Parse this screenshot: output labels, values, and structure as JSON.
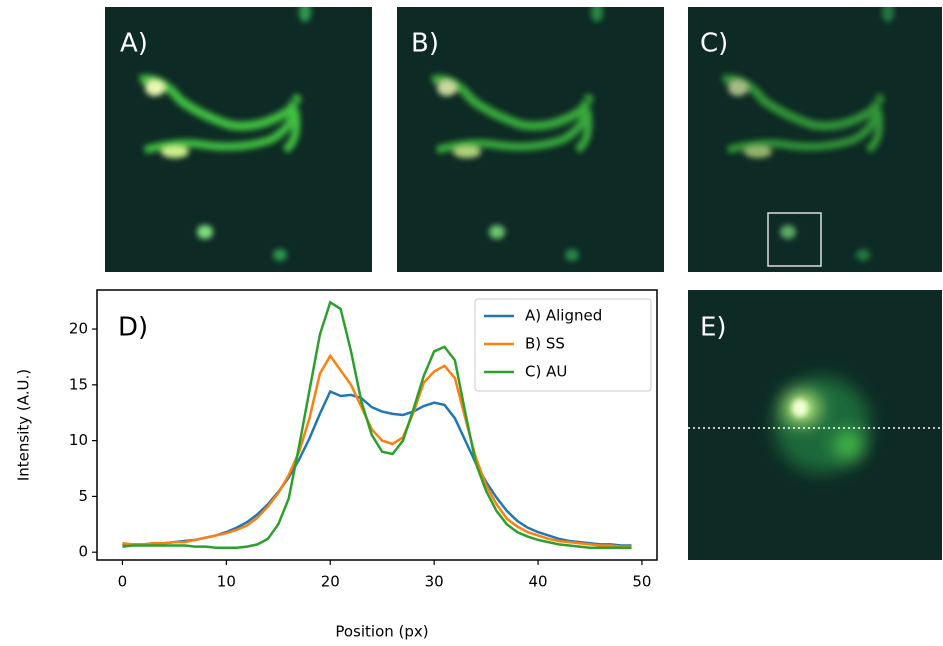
{
  "panels": [
    {
      "label": "A)"
    },
    {
      "label": "B)"
    },
    {
      "label": "C)"
    },
    {
      "label": "E)"
    }
  ],
  "chart_data": {
    "type": "line",
    "panel_label": "D)",
    "x_label": "Position (px)",
    "y_label": "Intensity (A.U.)",
    "x": [
      0,
      1,
      2,
      3,
      4,
      5,
      6,
      7,
      8,
      9,
      10,
      11,
      12,
      13,
      14,
      15,
      16,
      17,
      18,
      19,
      20,
      21,
      22,
      23,
      24,
      25,
      26,
      27,
      28,
      29,
      30,
      31,
      32,
      33,
      34,
      35,
      36,
      37,
      38,
      39,
      40,
      41,
      42,
      43,
      44,
      45,
      46,
      47,
      48,
      49
    ],
    "series": [
      {
        "name": "A) Aligned",
        "color": "#1f77b4",
        "values": [
          0.7,
          0.7,
          0.7,
          0.8,
          0.8,
          0.9,
          1.0,
          1.1,
          1.3,
          1.5,
          1.8,
          2.2,
          2.7,
          3.4,
          4.3,
          5.4,
          6.7,
          8.3,
          10.2,
          12.4,
          14.4,
          14.0,
          14.1,
          13.8,
          13.0,
          12.6,
          12.4,
          12.3,
          12.6,
          13.1,
          13.4,
          13.2,
          12.0,
          10.0,
          8.0,
          6.3,
          4.9,
          3.7,
          2.8,
          2.2,
          1.8,
          1.5,
          1.2,
          1.0,
          0.9,
          0.8,
          0.7,
          0.7,
          0.6,
          0.6
        ]
      },
      {
        "name": "B) SS",
        "color": "#ff7f0e",
        "values": [
          0.8,
          0.7,
          0.7,
          0.8,
          0.8,
          0.9,
          0.9,
          1.1,
          1.3,
          1.5,
          1.7,
          2.0,
          2.4,
          3.1,
          4.1,
          5.3,
          6.9,
          9.0,
          12.0,
          16.0,
          17.6,
          16.3,
          15.0,
          13.0,
          11.0,
          10.0,
          9.7,
          10.3,
          12.5,
          15.2,
          16.2,
          16.7,
          15.6,
          12.0,
          8.5,
          6.0,
          4.3,
          3.0,
          2.3,
          1.8,
          1.5,
          1.2,
          1.0,
          0.9,
          0.8,
          0.7,
          0.6,
          0.6,
          0.5,
          0.5
        ]
      },
      {
        "name": "C) AU",
        "color": "#2ca02c",
        "values": [
          0.5,
          0.6,
          0.6,
          0.6,
          0.6,
          0.6,
          0.6,
          0.5,
          0.5,
          0.4,
          0.4,
          0.4,
          0.5,
          0.7,
          1.2,
          2.5,
          4.8,
          9.5,
          14.5,
          19.5,
          22.4,
          21.8,
          18.0,
          13.5,
          10.5,
          9.0,
          8.8,
          10.0,
          12.8,
          15.8,
          18.0,
          18.4,
          17.2,
          12.5,
          8.0,
          5.5,
          3.7,
          2.5,
          1.8,
          1.4,
          1.1,
          0.9,
          0.7,
          0.6,
          0.5,
          0.4,
          0.4,
          0.4,
          0.4,
          0.4
        ]
      }
    ],
    "xlim": [
      -2.45,
      51.45
    ],
    "ylim": [
      -0.7,
      23.5
    ],
    "xticks": [
      0,
      10,
      20,
      30,
      40,
      50
    ],
    "yticks": [
      0,
      5,
      10,
      15,
      20
    ],
    "legend": "upper right"
  }
}
